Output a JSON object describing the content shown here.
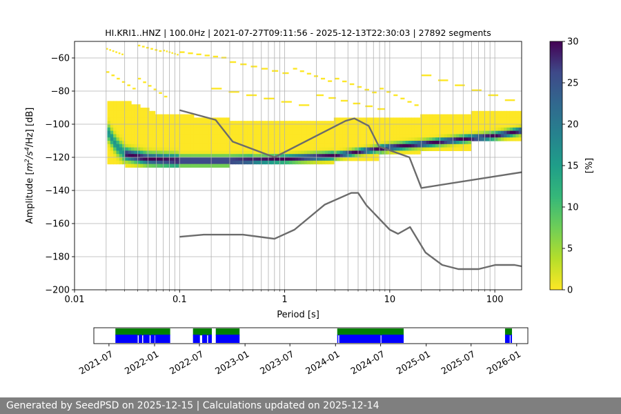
{
  "chart_data": [
    {
      "type": "heatmap",
      "title": "HI.KRI1..HNZ | 100.0Hz | 2021-07-27T09:11:56 - 2025-12-13T22:30:03 | 27892 segments",
      "xlabel": "Period [s]",
      "ylabel_prefix": "Amplitude [",
      "ylabel_units": [
        "m",
        "2",
        "/s",
        "4",
        "/Hz] [dB]"
      ],
      "xscale": "log",
      "xlim": [
        0.01,
        180
      ],
      "ylim": [
        -200,
        -50
      ],
      "grid": true,
      "x_ticks": [
        {
          "value": 0.01,
          "label": "0.01"
        },
        {
          "value": 0.1,
          "label": "0.1"
        },
        {
          "value": 1,
          "label": "1"
        },
        {
          "value": 10,
          "label": "10"
        },
        {
          "value": 100,
          "label": "100"
        }
      ],
      "y_ticks": [
        {
          "value": -60,
          "label": "−60"
        },
        {
          "value": -80,
          "label": "−80"
        },
        {
          "value": -100,
          "label": "−100"
        },
        {
          "value": -120,
          "label": "−120"
        },
        {
          "value": -140,
          "label": "−140"
        },
        {
          "value": -160,
          "label": "−160"
        },
        {
          "value": -180,
          "label": "−180"
        },
        {
          "value": -200,
          "label": "−200"
        }
      ],
      "colorbar": {
        "label": "[%]",
        "range": [
          0,
          30
        ],
        "ticks": [
          "0",
          "5",
          "10",
          "15",
          "20",
          "25",
          "30"
        ],
        "colormap": "viridis_r"
      },
      "density_ridge": [
        {
          "x": 0.02,
          "y": -103
        },
        {
          "x": 0.025,
          "y": -113
        },
        {
          "x": 0.03,
          "y": -118
        },
        {
          "x": 0.05,
          "y": -121
        },
        {
          "x": 0.1,
          "y": -122
        },
        {
          "x": 0.3,
          "y": -122
        },
        {
          "x": 1,
          "y": -121
        },
        {
          "x": 3,
          "y": -119
        },
        {
          "x": 6,
          "y": -116
        },
        {
          "x": 10,
          "y": -114
        },
        {
          "x": 20,
          "y": -112
        },
        {
          "x": 50,
          "y": -109
        },
        {
          "x": 100,
          "y": -107
        },
        {
          "x": 180,
          "y": -104
        }
      ],
      "noise_models": [
        {
          "name": "",
          "points": [
            {
              "x": 0.1,
              "y": -91.5
            },
            {
              "x": 0.22,
              "y": -97.4
            },
            {
              "x": 0.32,
              "y": -110.5
            },
            {
              "x": 0.8,
              "y": -120
            },
            {
              "x": 3.8,
              "y": -98
            },
            {
              "x": 4.6,
              "y": -96.5
            },
            {
              "x": 6.3,
              "y": -101
            },
            {
              "x": 7.9,
              "y": -113.5
            },
            {
              "x": 15.4,
              "y": -120
            },
            {
              "x": 20,
              "y": -138.5
            },
            {
              "x": 180,
              "y": -129
            }
          ]
        },
        {
          "name": "",
          "points": [
            {
              "x": 0.1,
              "y": -168
            },
            {
              "x": 0.17,
              "y": -166.7
            },
            {
              "x": 0.4,
              "y": -166.7
            },
            {
              "x": 0.8,
              "y": -169.2
            },
            {
              "x": 1.24,
              "y": -163.7
            },
            {
              "x": 2.4,
              "y": -148.6
            },
            {
              "x": 4.3,
              "y": -141.5
            },
            {
              "x": 5.0,
              "y": -141.5
            },
            {
              "x": 6.0,
              "y": -149
            },
            {
              "x": 10,
              "y": -163.7
            },
            {
              "x": 12,
              "y": -166.2
            },
            {
              "x": 15.6,
              "y": -162.1
            },
            {
              "x": 21.9,
              "y": -177.5
            },
            {
              "x": 31.6,
              "y": -185
            },
            {
              "x": 45,
              "y": -187.5
            },
            {
              "x": 70,
              "y": -187.5
            },
            {
              "x": 101,
              "y": -185
            },
            {
              "x": 154,
              "y": -185
            },
            {
              "x": 180,
              "y": -185.8
            }
          ]
        }
      ]
    },
    {
      "type": "timeline",
      "x_ticks": [
        "2021-07",
        "2022-01",
        "2022-07",
        "2023-01",
        "2023-07",
        "2024-01",
        "2024-07",
        "2025-01",
        "2025-07",
        "2026-01"
      ],
      "xlim": [
        "2021-05-01",
        "2026-02-15"
      ],
      "upper_color": "#008000",
      "lower_color": "#0000ff",
      "upper_segments": [
        [
          "2021-07-27",
          "2022-03-05"
        ],
        [
          "2022-06-05",
          "2022-08-20"
        ],
        [
          "2022-09-05",
          "2022-12-10"
        ],
        [
          "2024-01-08",
          "2024-10-02"
        ],
        [
          "2025-11-15",
          "2025-12-13"
        ]
      ],
      "lower_segments": [
        [
          "2021-07-27",
          "2021-10-25"
        ],
        [
          "2021-10-29",
          "2021-11-12"
        ],
        [
          "2021-11-16",
          "2021-12-12"
        ],
        [
          "2021-12-16",
          "2022-01-01"
        ],
        [
          "2022-01-03",
          "2022-03-05"
        ],
        [
          "2022-06-05",
          "2022-07-03"
        ],
        [
          "2022-07-12",
          "2022-08-01"
        ],
        [
          "2022-08-05",
          "2022-08-20"
        ],
        [
          "2022-09-05",
          "2022-12-10"
        ],
        [
          "2024-01-08",
          "2024-01-12"
        ],
        [
          "2024-01-16",
          "2024-07-01"
        ],
        [
          "2024-07-04",
          "2024-10-02"
        ],
        [
          "2025-11-15",
          "2025-12-04"
        ],
        [
          "2025-12-07",
          "2025-12-13"
        ]
      ]
    }
  ],
  "footer": {
    "text": "Generated by SeedPSD on 2025-12-15 | Calculations updated on 2025-12-14"
  }
}
